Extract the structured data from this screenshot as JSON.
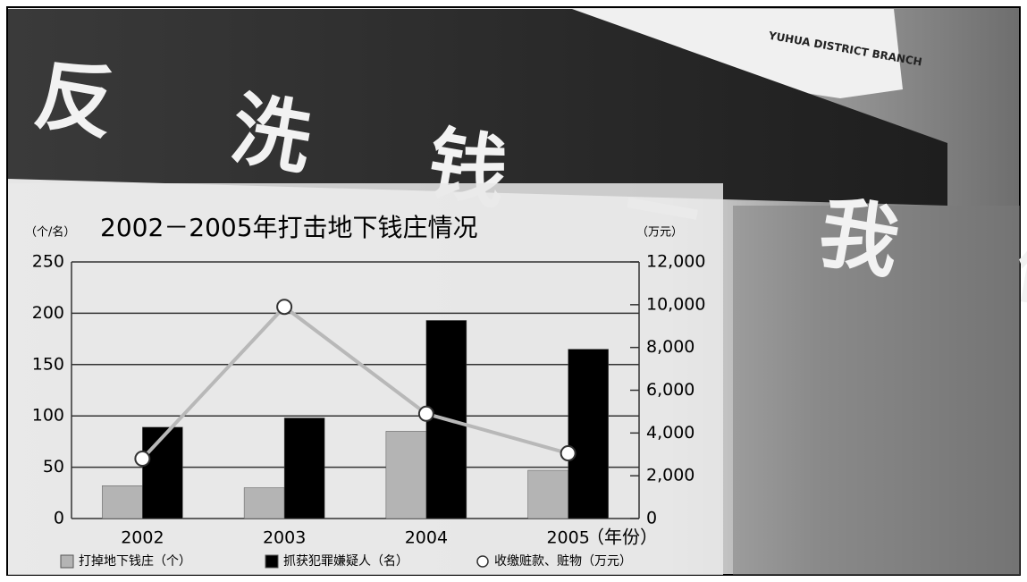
{
  "photo": {
    "banner": "反 洗 钱 — 我 们 的 责 任",
    "sign": "YUHUA DISTRICT BRANCH"
  },
  "chart_data": {
    "type": "bar",
    "title": "2002－2005年打击地下钱庄情况",
    "y_label": "（个/名）",
    "y2_label": "（万元）",
    "x_label": "（年份）",
    "categories": [
      "2002",
      "2003",
      "2004",
      "2005"
    ],
    "series": [
      {
        "name": "打掉地下钱庄（个）",
        "type": "bar",
        "color": "#b4b4b4",
        "values": [
          32,
          30,
          85,
          47
        ]
      },
      {
        "name": "抓获犯罪嫌疑人（名）",
        "type": "bar",
        "color": "#000000",
        "values": [
          89,
          98,
          193,
          165
        ]
      },
      {
        "name": "收缴赃款、赃物（万元）",
        "type": "line",
        "axis": "y2",
        "color": "#b8b8b8",
        "values": [
          2800,
          9900,
          4900,
          3050
        ]
      }
    ],
    "ylim": [
      0,
      250
    ],
    "yticks": [
      0,
      50,
      100,
      150,
      200,
      250
    ],
    "y2lim": [
      0,
      12000
    ],
    "y2ticks": [
      0,
      {
        "value": 2000,
        "label": "2,000"
      },
      {
        "value": 4000,
        "label": "4,000"
      },
      {
        "value": 6000,
        "label": "6,000"
      },
      {
        "value": 8000,
        "label": "8,000"
      },
      {
        "value": 10000,
        "label": "10,000"
      },
      {
        "value": 12000,
        "label": "12,000"
      }
    ],
    "grid": true
  }
}
